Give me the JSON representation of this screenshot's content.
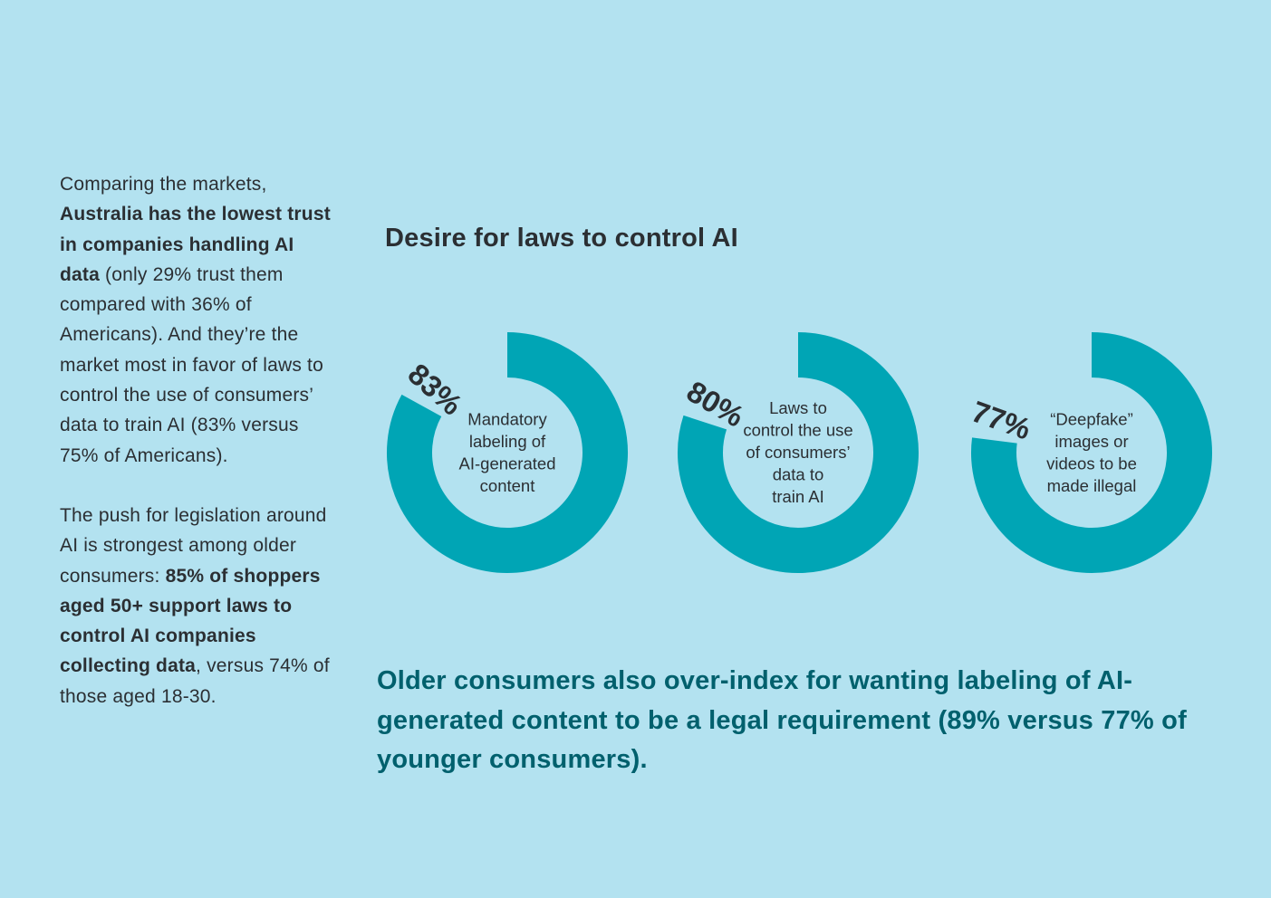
{
  "sidebar": {
    "p1_intro": "Comparing the markets,",
    "p1_bold": "Australia has the lowest trust in companies handling AI data",
    "p1_rest": "(only 29% trust them compared with 36% of Americans). And they’re the market most in favor of laws to control the use of consumers’ data to train AI (83% versus 75% of Americans).",
    "p2_intro": "The push for legislation around AI is strongest among older consumers:",
    "p2_bold": "85% of shoppers aged 50+ support laws to control AI companies collecting data",
    "p2_rest": ", versus 74% of those aged 18-30."
  },
  "highlight": {
    "text": "Older consumers also over-index for wanting labeling of AI-generated content to be a legal requirement (89% versus 77% of younger consumers)."
  },
  "colors": {
    "background": "#b3e2f0",
    "ring": "#00a5b5",
    "text": "#2b2f33",
    "highlight": "#00606d"
  },
  "chart_data": {
    "type": "pie",
    "variant": "donut",
    "title": "Desire for laws to control AI",
    "unit": "%",
    "max": 100,
    "items": [
      {
        "label_lines": [
          "Mandatory",
          "labeling of",
          "AI-generated",
          "content"
        ],
        "value": 83,
        "value_label": "83%"
      },
      {
        "label_lines": [
          "Laws to",
          "control the use",
          "of consumers’",
          "data to",
          "train AI"
        ],
        "value": 80,
        "value_label": "80%"
      },
      {
        "label_lines": [
          "“Deepfake”",
          "images or",
          "videos to be",
          "made illegal"
        ],
        "value": 77,
        "value_label": "77%"
      }
    ]
  }
}
